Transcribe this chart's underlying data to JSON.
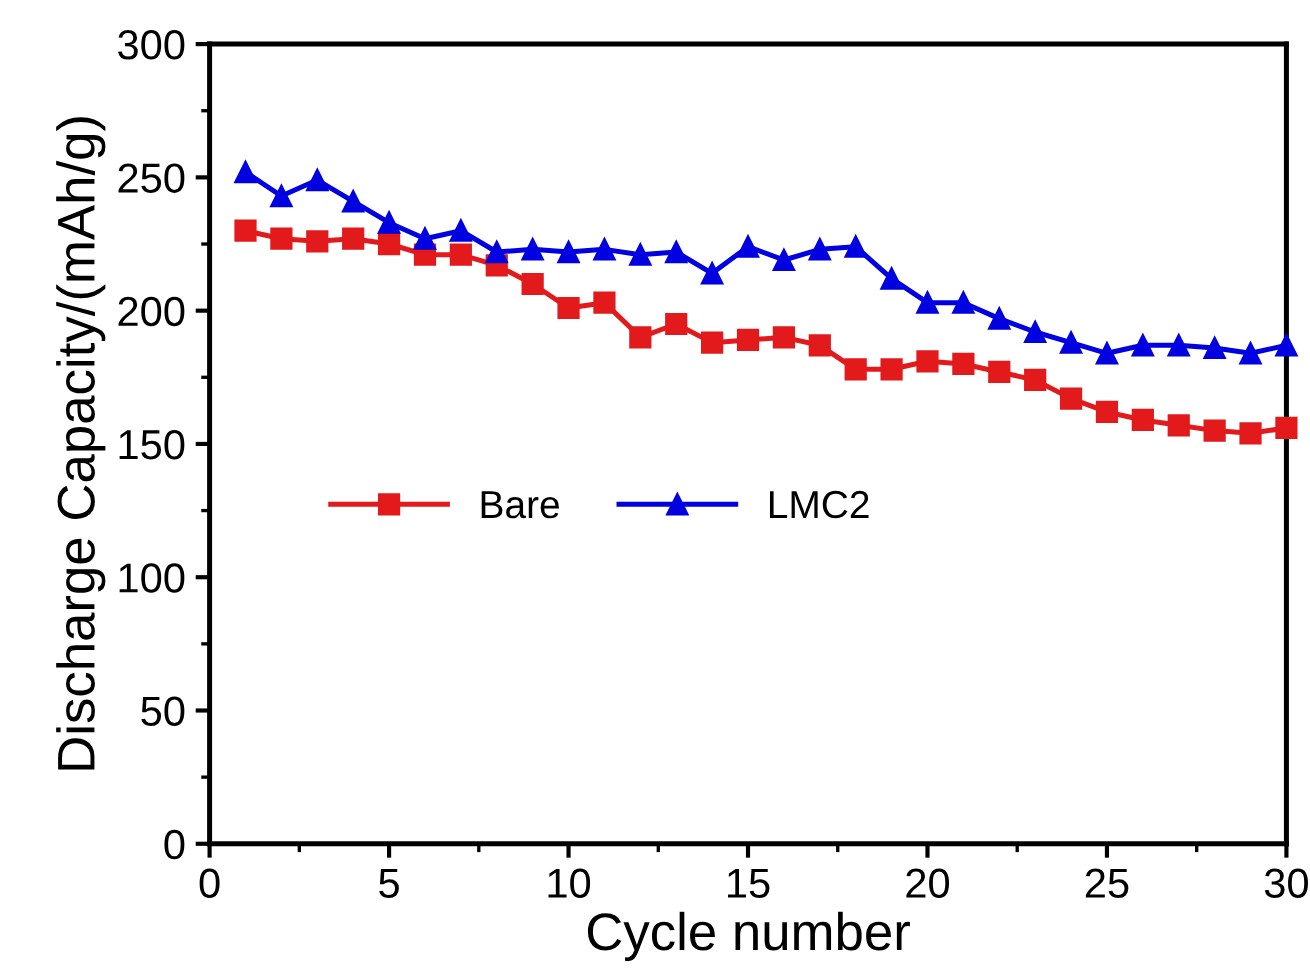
{
  "chart_data": {
    "type": "line",
    "xlabel": "Cycle number",
    "ylabel": "Discharge Capacity/(mAh/g)",
    "x": [
      1,
      2,
      3,
      4,
      5,
      6,
      7,
      8,
      9,
      10,
      11,
      12,
      13,
      14,
      15,
      16,
      17,
      18,
      19,
      20,
      21,
      22,
      23,
      24,
      25,
      26,
      27,
      28,
      29,
      30
    ],
    "series": [
      {
        "name": "Bare",
        "color": "#e31a1c",
        "marker": "square",
        "values": [
          230,
          227,
          226,
          227,
          225,
          221,
          221,
          217,
          210,
          201,
          203,
          190,
          195,
          188,
          189,
          190,
          187,
          178,
          178,
          181,
          180,
          177,
          174,
          167,
          162,
          159,
          157,
          155,
          154,
          156
        ]
      },
      {
        "name": "LMC2",
        "color": "#0000e0",
        "marker": "triangle",
        "values": [
          252,
          243,
          249,
          241,
          233,
          227,
          230,
          222,
          223,
          222,
          223,
          221,
          222,
          214,
          224,
          219,
          223,
          224,
          212,
          203,
          203,
          197,
          192,
          188,
          184,
          187,
          187,
          186,
          184,
          187
        ]
      }
    ],
    "xlim": [
      0,
      30
    ],
    "xticks": [
      0,
      5,
      10,
      15,
      20,
      25,
      30
    ],
    "ylim": [
      0,
      300
    ],
    "yticks": [
      0,
      50,
      100,
      150,
      200,
      250,
      300
    ],
    "grid": false,
    "legend": "left",
    "line_style": "solid"
  }
}
